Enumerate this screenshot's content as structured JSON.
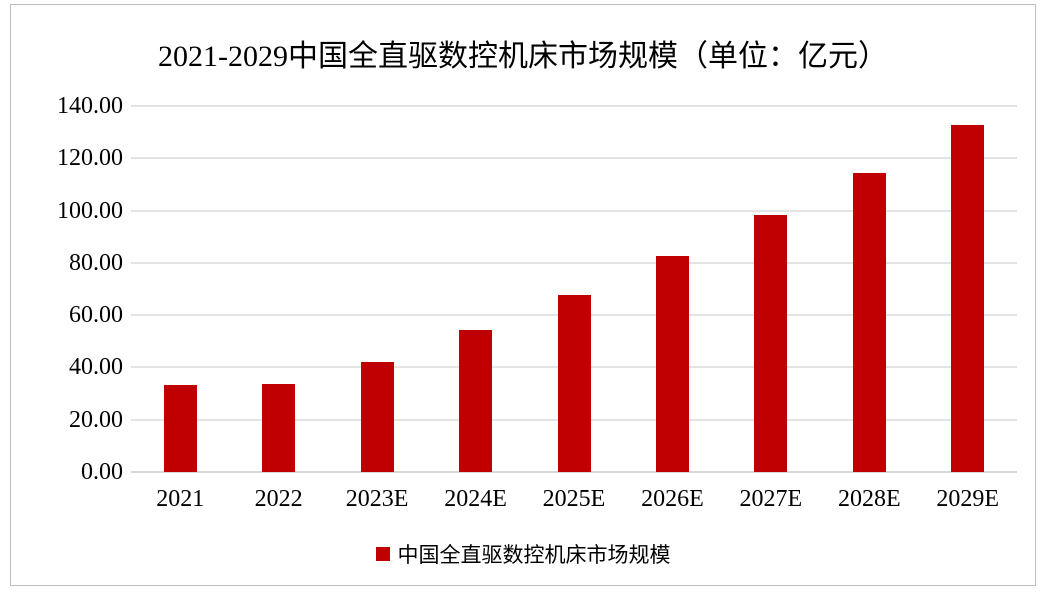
{
  "chart_data": {
    "type": "bar",
    "title": "2021-2029中国全直驱数控机床市场规模（单位：亿元）",
    "categories": [
      "2021",
      "2022",
      "2023E",
      "2024E",
      "2025E",
      "2026E",
      "2027E",
      "2028E",
      "2029E"
    ],
    "values": [
      33.4,
      33.8,
      42.1,
      54.5,
      67.7,
      82.8,
      98.4,
      114.3,
      132.8
    ],
    "unit": "亿元",
    "ylim": [
      0,
      140
    ],
    "ytick_step": 20,
    "ytick_labels": [
      "0.00",
      "20.00",
      "40.00",
      "60.00",
      "80.00",
      "100.00",
      "120.00",
      "140.00"
    ],
    "grid": true,
    "legend_position": "bottom",
    "legend": [
      {
        "label": "中国全直驱数控机床市场规模",
        "color": "#c00000"
      }
    ],
    "bar_color": "#c00000",
    "gridline_color": "#e4e4e4",
    "axis_line_color": "#d8d8d8",
    "frame_border_color": "#bfbfbf",
    "text_color": "#000000"
  }
}
